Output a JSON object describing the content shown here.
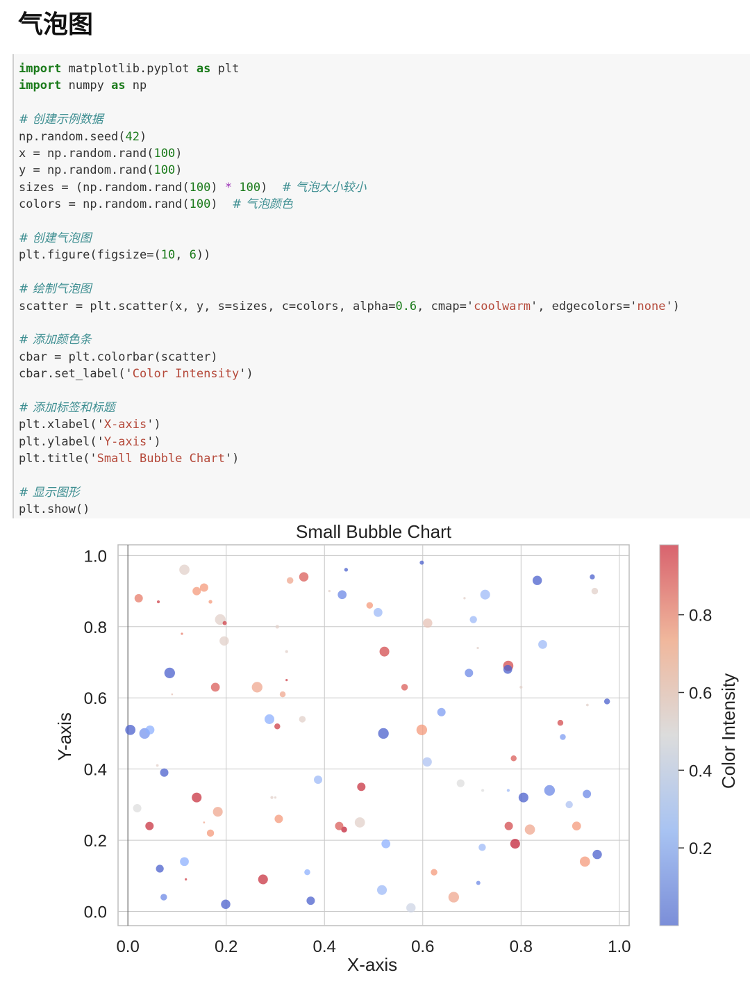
{
  "page": {
    "title": "气泡图"
  },
  "code": {
    "lines": [
      {
        "kind": "code",
        "parts": [
          [
            "kw",
            "import"
          ],
          [
            "t",
            " matplotlib.pyplot "
          ],
          [
            "kw",
            "as"
          ],
          [
            "t",
            " plt"
          ]
        ]
      },
      {
        "kind": "code",
        "parts": [
          [
            "kw",
            "import"
          ],
          [
            "t",
            " numpy "
          ],
          [
            "kw",
            "as"
          ],
          [
            "t",
            " np"
          ]
        ]
      },
      {
        "kind": "blank",
        "parts": []
      },
      {
        "kind": "comment",
        "parts": [
          [
            "t",
            "# 创建示例数据"
          ]
        ]
      },
      {
        "kind": "code",
        "parts": [
          [
            "t",
            "np.random.seed("
          ],
          [
            "num",
            "42"
          ],
          [
            "t",
            ")"
          ]
        ]
      },
      {
        "kind": "code",
        "parts": [
          [
            "t",
            "x = np.random.rand("
          ],
          [
            "num",
            "100"
          ],
          [
            "t",
            ")"
          ]
        ]
      },
      {
        "kind": "code",
        "parts": [
          [
            "t",
            "y = np.random.rand("
          ],
          [
            "num",
            "100"
          ],
          [
            "t",
            ")"
          ]
        ]
      },
      {
        "kind": "code",
        "parts": [
          [
            "t",
            "sizes = (np.random.rand("
          ],
          [
            "num",
            "100"
          ],
          [
            "t",
            ") "
          ],
          [
            "op",
            "*"
          ],
          [
            "t",
            " "
          ],
          [
            "num",
            "100"
          ],
          [
            "t",
            ")  "
          ],
          [
            "cm",
            "# 气泡大小较小"
          ]
        ]
      },
      {
        "kind": "code",
        "parts": [
          [
            "t",
            "colors = np.random.rand("
          ],
          [
            "num",
            "100"
          ],
          [
            "t",
            ")  "
          ],
          [
            "cm",
            "# 气泡颜色"
          ]
        ]
      },
      {
        "kind": "blank",
        "parts": []
      },
      {
        "kind": "comment",
        "parts": [
          [
            "t",
            "# 创建气泡图"
          ]
        ]
      },
      {
        "kind": "code",
        "parts": [
          [
            "t",
            "plt.figure(figsize=("
          ],
          [
            "num",
            "10"
          ],
          [
            "t",
            ", "
          ],
          [
            "num",
            "6"
          ],
          [
            "t",
            "))"
          ]
        ]
      },
      {
        "kind": "blank",
        "parts": []
      },
      {
        "kind": "comment",
        "parts": [
          [
            "t",
            "# 绘制气泡图"
          ]
        ]
      },
      {
        "kind": "code",
        "parts": [
          [
            "t",
            "scatter = plt.scatter(x, y, s=sizes, c=colors, alpha="
          ],
          [
            "num",
            "0.6"
          ],
          [
            "t",
            ", cmap='"
          ],
          [
            "str",
            "coolwarm"
          ],
          [
            "t",
            "', edgecolors='"
          ],
          [
            "str",
            "none"
          ],
          [
            "t",
            "')"
          ]
        ]
      },
      {
        "kind": "blank",
        "parts": []
      },
      {
        "kind": "comment",
        "parts": [
          [
            "t",
            "# 添加颜色条"
          ]
        ]
      },
      {
        "kind": "code",
        "parts": [
          [
            "t",
            "cbar = plt.colorbar(scatter)"
          ]
        ]
      },
      {
        "kind": "code",
        "parts": [
          [
            "t",
            "cbar.set_label('"
          ],
          [
            "str",
            "Color Intensity"
          ],
          [
            "t",
            "')"
          ]
        ]
      },
      {
        "kind": "blank",
        "parts": []
      },
      {
        "kind": "comment",
        "parts": [
          [
            "t",
            "# 添加标签和标题"
          ]
        ]
      },
      {
        "kind": "code",
        "parts": [
          [
            "t",
            "plt.xlabel('"
          ],
          [
            "str",
            "X-axis"
          ],
          [
            "t",
            "')"
          ]
        ]
      },
      {
        "kind": "code",
        "parts": [
          [
            "t",
            "plt.ylabel('"
          ],
          [
            "str",
            "Y-axis"
          ],
          [
            "t",
            "')"
          ]
        ]
      },
      {
        "kind": "code",
        "parts": [
          [
            "t",
            "plt.title('"
          ],
          [
            "str",
            "Small Bubble Chart"
          ],
          [
            "t",
            "')"
          ]
        ]
      },
      {
        "kind": "blank",
        "parts": []
      },
      {
        "kind": "comment",
        "parts": [
          [
            "t",
            "# 显示图形"
          ]
        ]
      },
      {
        "kind": "code",
        "parts": [
          [
            "t",
            "plt.show()"
          ]
        ]
      }
    ]
  },
  "chart_data": {
    "type": "scatter",
    "title": "Small Bubble Chart",
    "xlabel": "X-axis",
    "ylabel": "Y-axis",
    "colorbar_label": "Color Intensity",
    "colormap": "coolwarm",
    "alpha": 0.6,
    "xlim": [
      -0.02,
      1.02
    ],
    "ylim": [
      -0.04,
      1.03
    ],
    "xticks": [
      "0.0",
      "0.2",
      "0.4",
      "0.6",
      "0.8",
      "1.0"
    ],
    "yticks": [
      "0.0",
      "0.2",
      "0.4",
      "0.6",
      "0.8",
      "1.0"
    ],
    "colorbar_ticks": [
      "0.2",
      "0.4",
      "0.6",
      "0.8"
    ],
    "colorbar_range": [
      0.0,
      0.98
    ],
    "grid": true,
    "points": [
      {
        "x": 0.005,
        "y": 0.51,
        "s": 60,
        "c": 0.05
      },
      {
        "x": 0.034,
        "y": 0.5,
        "s": 65,
        "c": 0.18
      },
      {
        "x": 0.045,
        "y": 0.51,
        "s": 45,
        "c": 0.25
      },
      {
        "x": 0.022,
        "y": 0.88,
        "s": 40,
        "c": 0.8
      },
      {
        "x": 0.062,
        "y": 0.87,
        "s": 5,
        "c": 0.9
      },
      {
        "x": 0.085,
        "y": 0.67,
        "s": 65,
        "c": 0.05
      },
      {
        "x": 0.074,
        "y": 0.39,
        "s": 40,
        "c": 0.05
      },
      {
        "x": 0.06,
        "y": 0.41,
        "s": 4,
        "c": 0.55
      },
      {
        "x": 0.019,
        "y": 0.29,
        "s": 40,
        "c": 0.5
      },
      {
        "x": 0.044,
        "y": 0.24,
        "s": 40,
        "c": 0.92
      },
      {
        "x": 0.065,
        "y": 0.12,
        "s": 35,
        "c": 0.05
      },
      {
        "x": 0.073,
        "y": 0.04,
        "s": 25,
        "c": 0.15
      },
      {
        "x": 0.115,
        "y": 0.96,
        "s": 60,
        "c": 0.55
      },
      {
        "x": 0.14,
        "y": 0.9,
        "s": 40,
        "c": 0.75
      },
      {
        "x": 0.155,
        "y": 0.91,
        "s": 40,
        "c": 0.75
      },
      {
        "x": 0.168,
        "y": 0.87,
        "s": 8,
        "c": 0.75
      },
      {
        "x": 0.11,
        "y": 0.78,
        "s": 3,
        "c": 0.8
      },
      {
        "x": 0.09,
        "y": 0.61,
        "s": 2,
        "c": 0.6
      },
      {
        "x": 0.188,
        "y": 0.82,
        "s": 65,
        "c": 0.55
      },
      {
        "x": 0.197,
        "y": 0.81,
        "s": 10,
        "c": 0.9
      },
      {
        "x": 0.196,
        "y": 0.76,
        "s": 50,
        "c": 0.55
      },
      {
        "x": 0.178,
        "y": 0.63,
        "s": 45,
        "c": 0.85
      },
      {
        "x": 0.14,
        "y": 0.32,
        "s": 55,
        "c": 0.92
      },
      {
        "x": 0.183,
        "y": 0.28,
        "s": 55,
        "c": 0.7
      },
      {
        "x": 0.168,
        "y": 0.22,
        "s": 30,
        "c": 0.75
      },
      {
        "x": 0.155,
        "y": 0.25,
        "s": 2,
        "c": 0.7
      },
      {
        "x": 0.115,
        "y": 0.14,
        "s": 45,
        "c": 0.25
      },
      {
        "x": 0.118,
        "y": 0.09,
        "s": 3,
        "c": 0.9
      },
      {
        "x": 0.199,
        "y": 0.02,
        "s": 50,
        "c": 0.05
      },
      {
        "x": 0.263,
        "y": 0.63,
        "s": 65,
        "c": 0.7
      },
      {
        "x": 0.304,
        "y": 0.8,
        "s": 8,
        "c": 0.55
      },
      {
        "x": 0.315,
        "y": 0.61,
        "s": 20,
        "c": 0.7
      },
      {
        "x": 0.323,
        "y": 0.65,
        "s": 3,
        "c": 0.9
      },
      {
        "x": 0.323,
        "y": 0.73,
        "s": 5,
        "c": 0.55
      },
      {
        "x": 0.33,
        "y": 0.93,
        "s": 25,
        "c": 0.7
      },
      {
        "x": 0.358,
        "y": 0.94,
        "s": 50,
        "c": 0.85
      },
      {
        "x": 0.288,
        "y": 0.54,
        "s": 55,
        "c": 0.25
      },
      {
        "x": 0.304,
        "y": 0.52,
        "s": 20,
        "c": 0.9
      },
      {
        "x": 0.355,
        "y": 0.54,
        "s": 25,
        "c": 0.55
      },
      {
        "x": 0.387,
        "y": 0.37,
        "s": 40,
        "c": 0.3
      },
      {
        "x": 0.293,
        "y": 0.32,
        "s": 5,
        "c": 0.55
      },
      {
        "x": 0.307,
        "y": 0.26,
        "s": 40,
        "c": 0.75
      },
      {
        "x": 0.275,
        "y": 0.09,
        "s": 55,
        "c": 0.92
      },
      {
        "x": 0.365,
        "y": 0.11,
        "s": 20,
        "c": 0.25
      },
      {
        "x": 0.372,
        "y": 0.03,
        "s": 40,
        "c": 0.05
      },
      {
        "x": 0.436,
        "y": 0.89,
        "s": 45,
        "c": 0.15
      },
      {
        "x": 0.444,
        "y": 0.96,
        "s": 8,
        "c": 0.05
      },
      {
        "x": 0.492,
        "y": 0.86,
        "s": 25,
        "c": 0.75
      },
      {
        "x": 0.509,
        "y": 0.84,
        "s": 45,
        "c": 0.3
      },
      {
        "x": 0.522,
        "y": 0.73,
        "s": 55,
        "c": 0.88
      },
      {
        "x": 0.563,
        "y": 0.63,
        "s": 25,
        "c": 0.85
      },
      {
        "x": 0.52,
        "y": 0.5,
        "s": 65,
        "c": 0.05
      },
      {
        "x": 0.598,
        "y": 0.51,
        "s": 65,
        "c": 0.75
      },
      {
        "x": 0.475,
        "y": 0.35,
        "s": 40,
        "c": 0.92
      },
      {
        "x": 0.472,
        "y": 0.25,
        "s": 60,
        "c": 0.55
      },
      {
        "x": 0.44,
        "y": 0.23,
        "s": 20,
        "c": 0.95
      },
      {
        "x": 0.43,
        "y": 0.24,
        "s": 40,
        "c": 0.85
      },
      {
        "x": 0.525,
        "y": 0.19,
        "s": 45,
        "c": 0.25
      },
      {
        "x": 0.517,
        "y": 0.06,
        "s": 55,
        "c": 0.3
      },
      {
        "x": 0.598,
        "y": 0.98,
        "s": 10,
        "c": 0.05
      },
      {
        "x": 0.61,
        "y": 0.81,
        "s": 50,
        "c": 0.6
      },
      {
        "x": 0.638,
        "y": 0.56,
        "s": 40,
        "c": 0.2
      },
      {
        "x": 0.609,
        "y": 0.42,
        "s": 50,
        "c": 0.35
      },
      {
        "x": 0.576,
        "y": 0.01,
        "s": 50,
        "c": 0.45
      },
      {
        "x": 0.623,
        "y": 0.11,
        "s": 25,
        "c": 0.75
      },
      {
        "x": 0.663,
        "y": 0.04,
        "s": 65,
        "c": 0.7
      },
      {
        "x": 0.677,
        "y": 0.36,
        "s": 35,
        "c": 0.5
      },
      {
        "x": 0.694,
        "y": 0.67,
        "s": 40,
        "c": 0.15
      },
      {
        "x": 0.727,
        "y": 0.89,
        "s": 55,
        "c": 0.3
      },
      {
        "x": 0.703,
        "y": 0.82,
        "s": 30,
        "c": 0.3
      },
      {
        "x": 0.712,
        "y": 0.74,
        "s": 3,
        "c": 0.55
      },
      {
        "x": 0.774,
        "y": 0.69,
        "s": 60,
        "c": 0.88
      },
      {
        "x": 0.773,
        "y": 0.68,
        "s": 45,
        "c": 0.05
      },
      {
        "x": 0.8,
        "y": 0.63,
        "s": 5,
        "c": 0.55
      },
      {
        "x": 0.833,
        "y": 0.93,
        "s": 50,
        "c": 0.05
      },
      {
        "x": 0.844,
        "y": 0.75,
        "s": 45,
        "c": 0.3
      },
      {
        "x": 0.774,
        "y": 0.34,
        "s": 5,
        "c": 0.3
      },
      {
        "x": 0.722,
        "y": 0.34,
        "s": 5,
        "c": 0.5
      },
      {
        "x": 0.785,
        "y": 0.43,
        "s": 20,
        "c": 0.85
      },
      {
        "x": 0.805,
        "y": 0.32,
        "s": 55,
        "c": 0.05
      },
      {
        "x": 0.858,
        "y": 0.34,
        "s": 65,
        "c": 0.15
      },
      {
        "x": 0.88,
        "y": 0.53,
        "s": 20,
        "c": 0.88
      },
      {
        "x": 0.885,
        "y": 0.49,
        "s": 20,
        "c": 0.2
      },
      {
        "x": 0.935,
        "y": 0.58,
        "s": 4,
        "c": 0.55
      },
      {
        "x": 0.945,
        "y": 0.94,
        "s": 15,
        "c": 0.05
      },
      {
        "x": 0.95,
        "y": 0.9,
        "s": 25,
        "c": 0.55
      },
      {
        "x": 0.975,
        "y": 0.59,
        "s": 20,
        "c": 0.05
      },
      {
        "x": 0.934,
        "y": 0.33,
        "s": 40,
        "c": 0.15
      },
      {
        "x": 0.913,
        "y": 0.24,
        "s": 45,
        "c": 0.75
      },
      {
        "x": 0.898,
        "y": 0.3,
        "s": 30,
        "c": 0.35
      },
      {
        "x": 0.775,
        "y": 0.24,
        "s": 40,
        "c": 0.88
      },
      {
        "x": 0.818,
        "y": 0.23,
        "s": 60,
        "c": 0.7
      },
      {
        "x": 0.788,
        "y": 0.19,
        "s": 55,
        "c": 0.95
      },
      {
        "x": 0.721,
        "y": 0.18,
        "s": 30,
        "c": 0.3
      },
      {
        "x": 0.713,
        "y": 0.08,
        "s": 10,
        "c": 0.15
      },
      {
        "x": 0.93,
        "y": 0.14,
        "s": 60,
        "c": 0.75
      },
      {
        "x": 0.955,
        "y": 0.16,
        "s": 50,
        "c": 0.05
      },
      {
        "x": 0.685,
        "y": 0.88,
        "s": 3,
        "c": 0.55
      },
      {
        "x": 0.41,
        "y": 0.9,
        "s": 3,
        "c": 0.55
      },
      {
        "x": 0.3,
        "y": 0.32,
        "s": 3,
        "c": 0.55
      }
    ]
  }
}
